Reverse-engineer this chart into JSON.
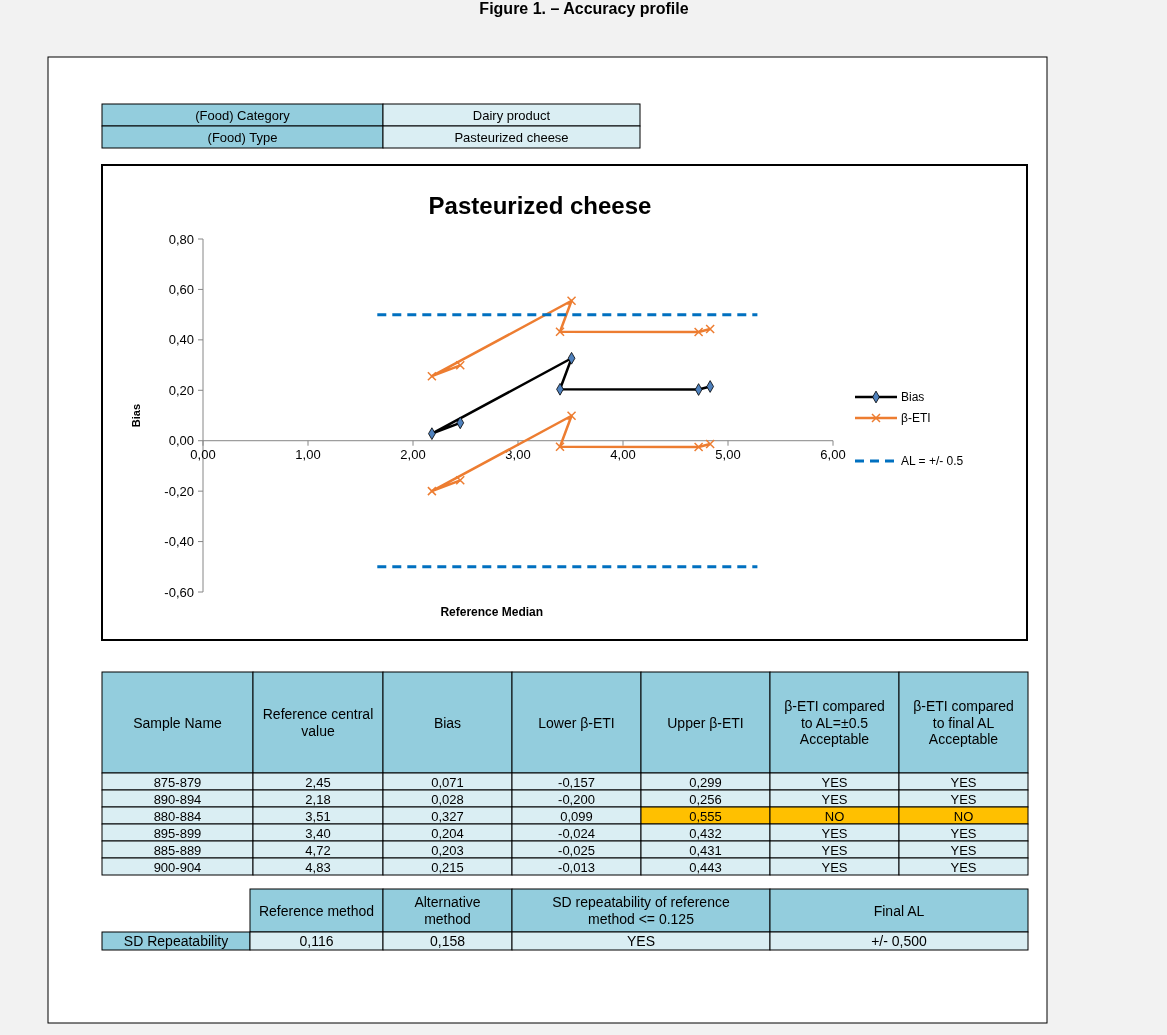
{
  "chart_data": {
    "type": "line",
    "title": "Pasteurized cheese",
    "xlabel": "Reference Median",
    "ylabel": "Bias",
    "xlim": [
      0,
      6
    ],
    "xticks": [
      {
        "value": 0,
        "label": "0,00"
      },
      {
        "value": 1,
        "label": "1,00"
      },
      {
        "value": 2,
        "label": "2,00"
      },
      {
        "value": 3,
        "label": "3,00"
      },
      {
        "value": 4,
        "label": "4,00"
      },
      {
        "value": 5,
        "label": "5,00"
      },
      {
        "value": 6,
        "label": "6,00"
      }
    ],
    "ylim": [
      -0.6,
      0.8
    ],
    "yticks": [
      {
        "value": -0.6,
        "label": "-0,60"
      },
      {
        "value": -0.4,
        "label": "-0,40"
      },
      {
        "value": -0.2,
        "label": "-0,20"
      },
      {
        "value": 0,
        "label": "0,00"
      },
      {
        "value": 0.2,
        "label": "0,20"
      },
      {
        "value": 0.4,
        "label": "0,40"
      },
      {
        "value": 0.6,
        "label": "0,60"
      },
      {
        "value": 0.8,
        "label": "0,80"
      }
    ],
    "grid": false,
    "legend": "right",
    "series": [
      {
        "name": "Bias",
        "color": "#000000",
        "marker": "diamond",
        "line_style": "solid",
        "x": [
          2.45,
          2.18,
          3.51,
          3.4,
          4.72,
          4.83
        ],
        "values": [
          0.071,
          0.028,
          0.327,
          0.204,
          0.203,
          0.215
        ]
      },
      {
        "name": "β-ETI",
        "color": "#ed7d31",
        "marker": "cross",
        "line_style": "solid",
        "x": [
          2.45,
          2.18,
          3.51,
          3.4,
          4.72,
          4.83
        ],
        "values": [
          0.299,
          0.256,
          0.555,
          0.432,
          0.431,
          0.443
        ]
      },
      {
        "color": "#ed7d31",
        "marker": "cross",
        "line_style": "solid",
        "x": [
          2.45,
          2.18,
          3.51,
          3.4,
          4.72,
          4.83
        ],
        "values": [
          -0.157,
          -0.2,
          0.099,
          -0.024,
          -0.025,
          -0.013
        ]
      },
      {
        "name": "AL = +/- 0.5",
        "color": "#0070c0",
        "marker": "none",
        "line_style": "dashed",
        "x": [
          1.66,
          5.28
        ],
        "values": [
          0.5,
          0.5
        ]
      },
      {
        "color": "#0070c0",
        "marker": "none",
        "line_style": "dashed",
        "x": [
          1.66,
          5.28
        ],
        "values": [
          -0.5,
          -0.5
        ]
      }
    ],
    "annotations": [
      "Figure 1. – Accuracy profile",
      "(Food) Category",
      "Dairy product",
      "(Food) Type",
      "Pasteurized cheese",
      "Sample Name",
      "Reference central value",
      "Bias",
      "Lower β-ETI",
      "Upper β-ETI",
      "β-ETI compared to AL=±0.5 Acceptable",
      "β-ETI compared to final AL Acceptable",
      "875-879",
      "2,45",
      "0,071",
      "-0,157",
      "0,299",
      "YES",
      "YES",
      "890-894",
      "2,18",
      "0,028",
      "-0,200",
      "0,256",
      "YES",
      "YES",
      "880-884",
      "3,51",
      "0,327",
      "0,099",
      "0,555",
      "NO",
      "NO",
      "895-899",
      "3,40",
      "0,204",
      "-0,024",
      "0,432",
      "YES",
      "YES",
      "885-889",
      "4,72",
      "0,203",
      "-0,025",
      "0,431",
      "YES",
      "YES",
      "900-904",
      "4,83",
      "0,215",
      "-0,013",
      "0,443",
      "YES",
      "YES",
      "Reference method",
      "Alternative method",
      "SD repeatability of reference method <= 0.125",
      "Final AL",
      "SD Repeatability",
      "0,116",
      "0,158",
      "YES",
      "+/- 0,500"
    ]
  }
}
